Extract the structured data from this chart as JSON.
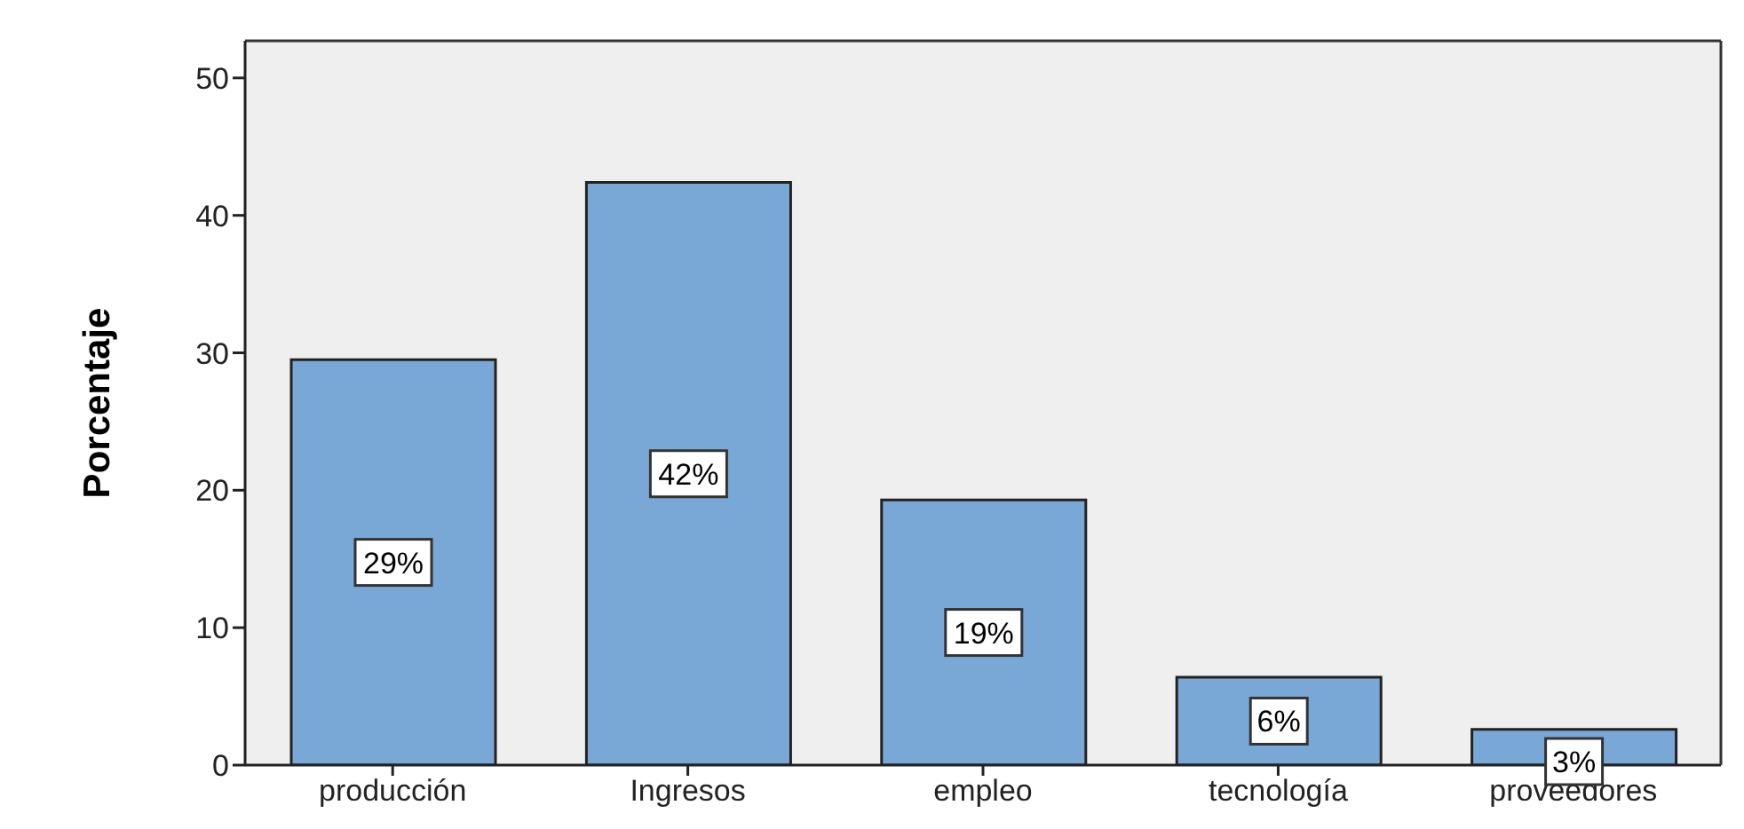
{
  "chart_data": {
    "type": "bar",
    "ylabel": "Porcentaje",
    "categories": [
      "producción",
      "Ingresos",
      "empleo",
      "tecnología",
      "proveedores"
    ],
    "values": [
      29.5,
      42.4,
      19.3,
      6.4,
      2.6
    ],
    "value_labels": [
      "29%",
      "42%",
      "19%",
      "6%",
      "3%"
    ],
    "color": "#7aa8d6",
    "ylim": [
      0,
      52.7
    ],
    "yticks": [
      0,
      10,
      20,
      30,
      40,
      50
    ],
    "grid": false
  }
}
